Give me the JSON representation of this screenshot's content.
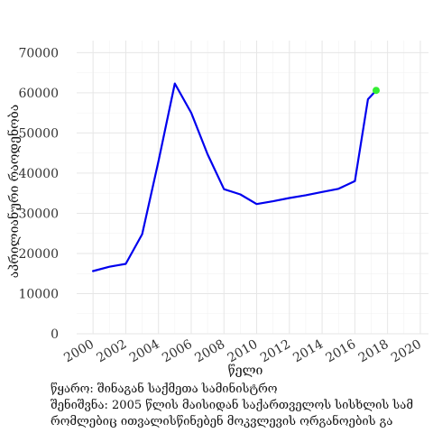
{
  "chart_data": {
    "type": "line",
    "xlabel": "წელი",
    "ylabel": "აპრილიანური რაოდენობა",
    "xlim": [
      1999,
      2020.5
    ],
    "ylim": [
      0,
      73000
    ],
    "x_ticks": [
      2000,
      2002,
      2004,
      2006,
      2008,
      2010,
      2012,
      2014,
      2016,
      2018,
      2020
    ],
    "y_ticks": [
      0,
      10000,
      20000,
      30000,
      40000,
      50000,
      60000,
      70000
    ],
    "grid": true,
    "legend": "none",
    "line_color": "#0000ee",
    "highlight_color": "#33ee33",
    "series": [
      {
        "x": [
          2000,
          2001,
          2002,
          2003,
          2004,
          2005,
          2006,
          2007,
          2008,
          2009,
          2010,
          2011,
          2012,
          2013,
          2014,
          2015,
          2016,
          2016.8,
          2017.3
        ],
        "y": [
          15600,
          16700,
          17400,
          24800,
          43000,
          62300,
          55000,
          44700,
          36000,
          34700,
          32300,
          33000,
          33800,
          34500,
          35300,
          36100,
          38000,
          58400,
          60600
        ]
      }
    ],
    "highlight_point": {
      "x": 2017.3,
      "y": 60600
    }
  },
  "caption": {
    "source": "წყარო: შინაგან საქმეთა სამინისტრო",
    "note_line1": "შენიშვნა: 2005 წლის მაისიდან საქართველოს სისხლის სამ",
    "note_line2": " რომლებიც ითვალისწინებენ მოკვლევის ორგანოების გა"
  }
}
